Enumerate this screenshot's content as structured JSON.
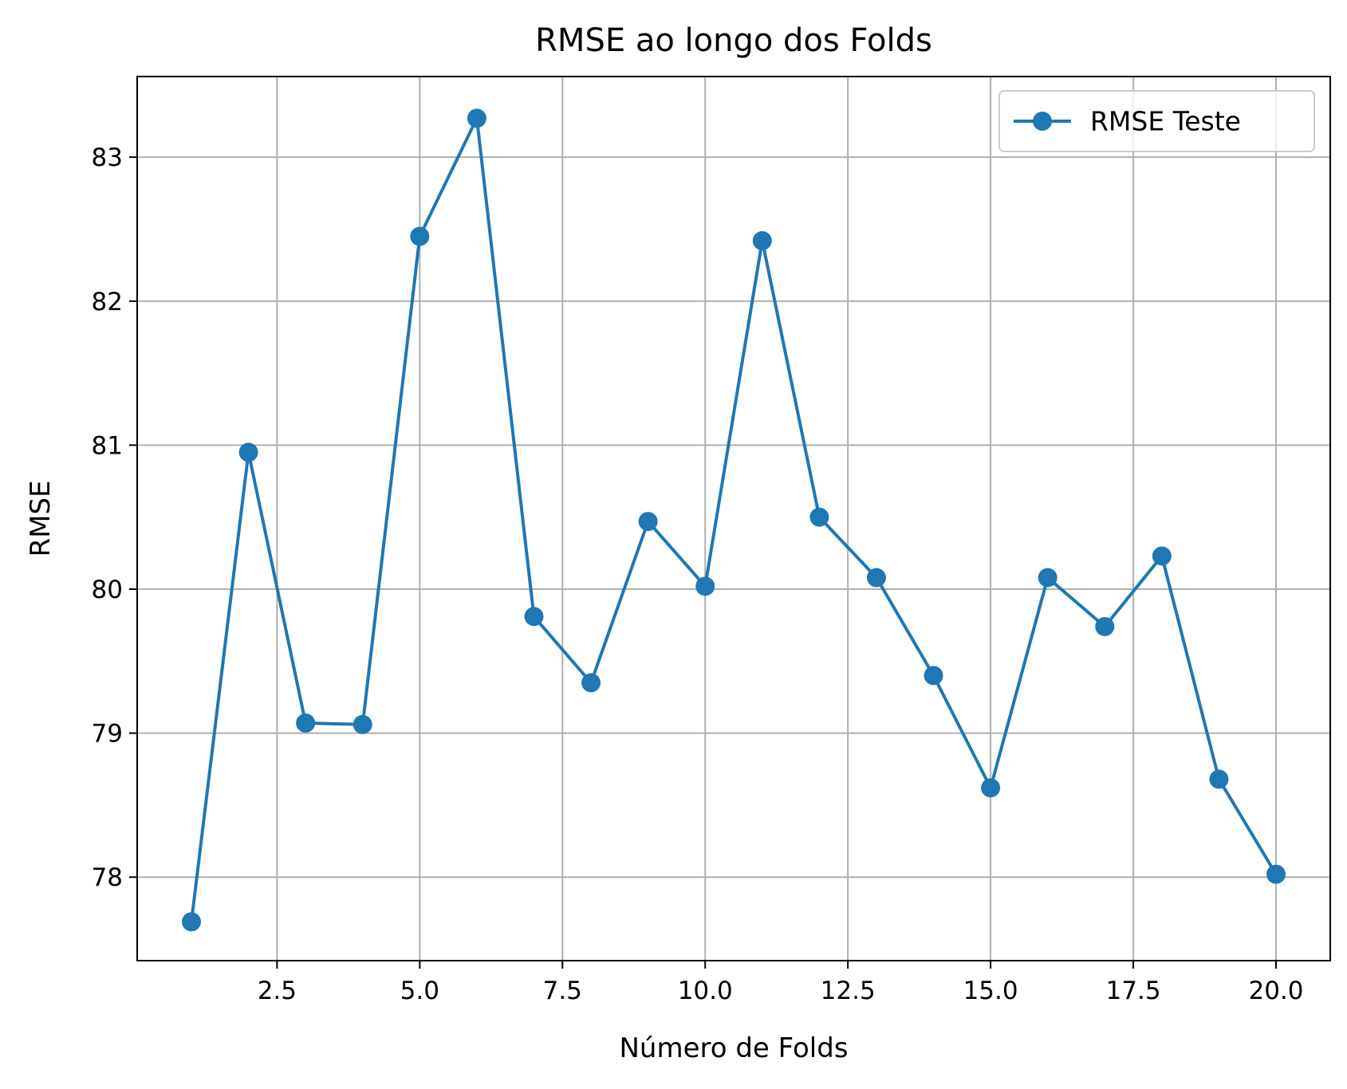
{
  "chart_data": {
    "type": "line",
    "title": "RMSE ao longo dos Folds",
    "xlabel": "Número de Folds",
    "ylabel": "RMSE",
    "xlim": [
      0.05,
      20.95
    ],
    "ylim": [
      77.42,
      83.56
    ],
    "xticks": [
      2.5,
      5.0,
      7.5,
      10.0,
      12.5,
      15.0,
      17.5,
      20.0
    ],
    "xtick_labels": [
      "2.5",
      "5.0",
      "7.5",
      "10.0",
      "12.5",
      "15.0",
      "17.5",
      "20.0"
    ],
    "yticks": [
      78,
      79,
      80,
      81,
      82,
      83
    ],
    "ytick_labels": [
      "78",
      "79",
      "80",
      "81",
      "82",
      "83"
    ],
    "grid": true,
    "legend_position": "top-right",
    "series": [
      {
        "name": "RMSE Teste",
        "color": "#1f77b4",
        "marker": "circle",
        "x": [
          1,
          2,
          3,
          4,
          5,
          6,
          7,
          8,
          9,
          10,
          11,
          12,
          13,
          14,
          15,
          16,
          17,
          18,
          19,
          20
        ],
        "y": [
          77.69,
          80.95,
          79.07,
          79.06,
          82.45,
          83.27,
          79.81,
          79.35,
          80.47,
          80.02,
          82.42,
          80.5,
          80.08,
          79.4,
          78.62,
          80.08,
          79.74,
          80.23,
          78.68,
          78.02
        ]
      }
    ]
  }
}
